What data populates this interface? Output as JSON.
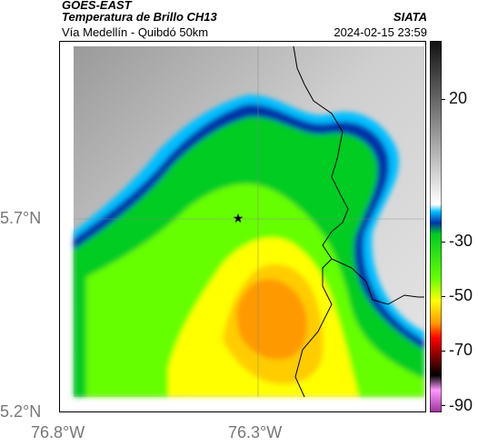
{
  "header": {
    "title_line1": "GOES-EAST",
    "title_line2": "Temperatura de Brillo CH13",
    "subtitle": "Vía Medellín - Quibdó 50km",
    "source": "SIATA",
    "datetime": "2024-02-15 23:59"
  },
  "axes": {
    "lat_ticks": [
      "5.7°N",
      "5.2°N"
    ],
    "lon_ticks": [
      "76.8°W",
      "76.3°W"
    ]
  },
  "colorbar": {
    "ticks": [
      "20",
      "-30",
      "-50",
      "-70",
      "-90"
    ],
    "colors": [
      "#111111",
      "#ffffff",
      "#00bfff",
      "#0033aa",
      "#00cc22",
      "#66ff00",
      "#ffff00",
      "#ff9900",
      "#ff0000",
      "#660000",
      "#000000",
      "#ff99ff",
      "#993399"
    ]
  },
  "map": {
    "marker": "star-icon",
    "feature": "department-border"
  }
}
